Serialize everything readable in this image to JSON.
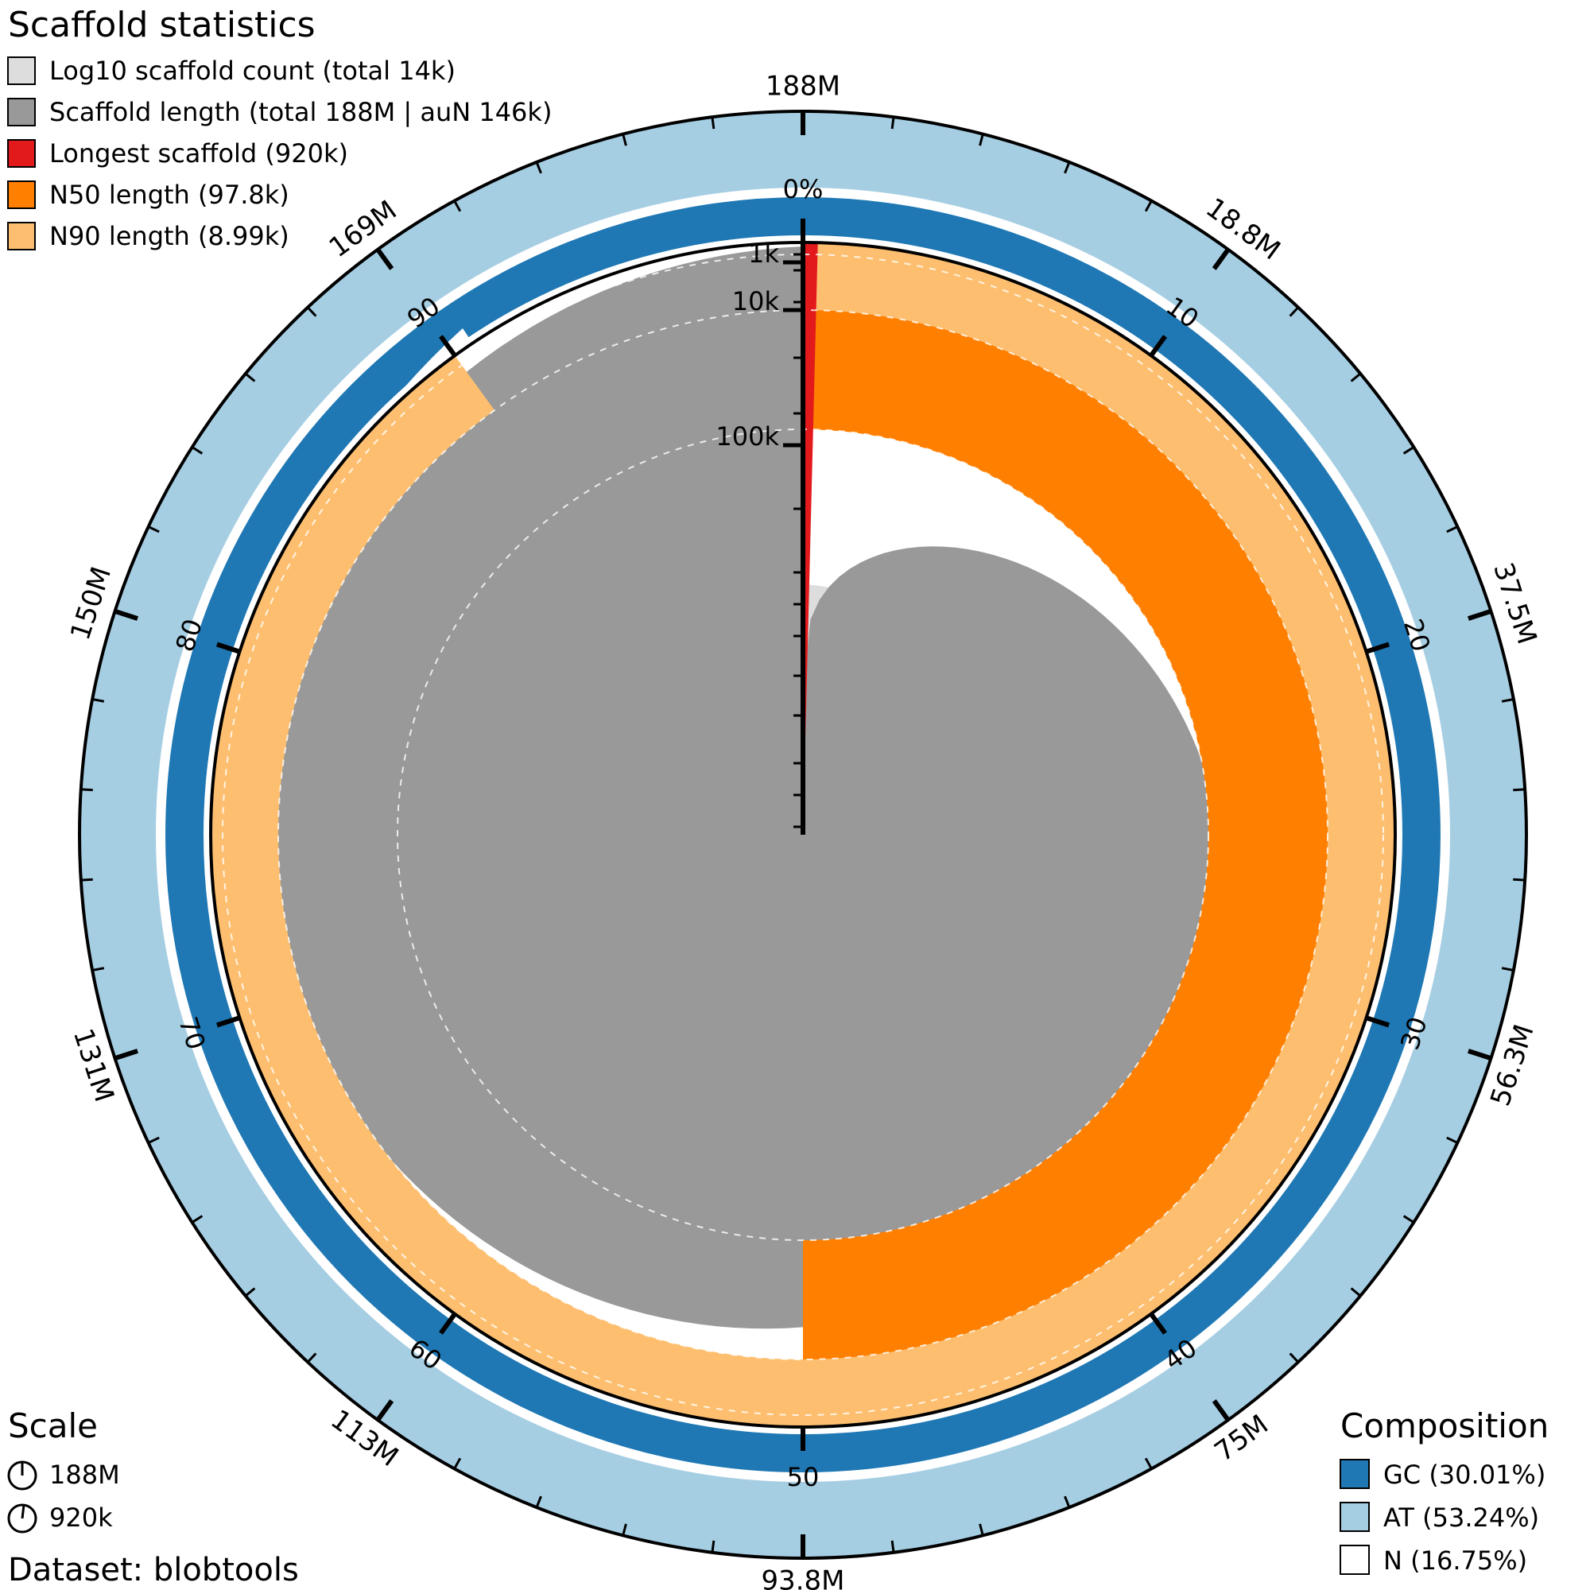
{
  "chart_data": {
    "type": "snail",
    "title": "Scaffold statistics",
    "legend": [
      {
        "label": "Log10 scaffold count (total 14k)",
        "color": "#dddddd"
      },
      {
        "label": "Scaffold length (total 188M | auN 146k)",
        "color": "#999999"
      },
      {
        "label": "Longest scaffold (920k)",
        "color": "#e31a1c"
      },
      {
        "label": "N50 length (97.8k)",
        "color": "#ff7f00"
      },
      {
        "label": "N90 length (8.99k)",
        "color": "#fdbf6f"
      }
    ],
    "outer_ticks": [
      "188M",
      "18.8M",
      "37.5M",
      "56.3M",
      "75M",
      "93.8M",
      "113M",
      "131M",
      "150M",
      "169M"
    ],
    "percent_ticks": [
      "0%",
      "10",
      "20",
      "30",
      "40",
      "50",
      "60",
      "70",
      "80",
      "90"
    ],
    "radial_ticks": [
      "1k",
      "10k",
      "100k"
    ],
    "n50_percent": 50,
    "n90_percent": 90,
    "longest_scaffold": 920000,
    "scale_title": "Scale",
    "scale_entries": [
      "188M",
      "920k"
    ],
    "dataset_label": "Dataset: blobtools",
    "composition_title": "Composition",
    "composition": [
      {
        "label": "GC (30.01%)",
        "color": "#1f78b4"
      },
      {
        "label": "AT (53.24%)",
        "color": "#a6cee3"
      },
      {
        "label": "N (16.75%)",
        "color": "#ffffff"
      }
    ]
  }
}
